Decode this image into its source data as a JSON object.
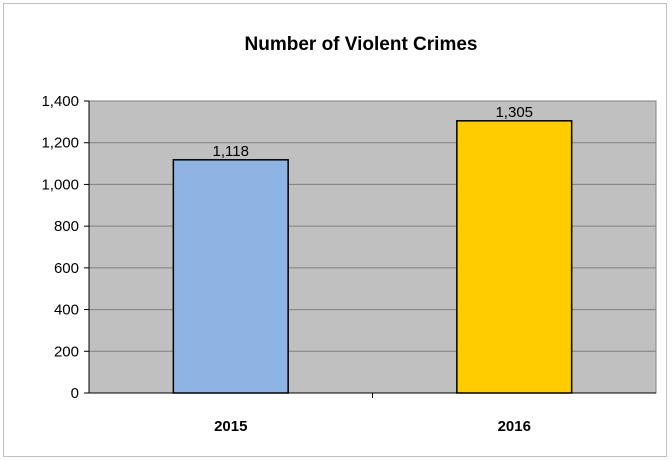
{
  "chart_data": {
    "type": "bar",
    "title": "Number of Violent Crimes",
    "categories": [
      "2015",
      "2016"
    ],
    "values": [
      1118,
      1305
    ],
    "data_labels": [
      "1,118",
      "1,305"
    ],
    "bar_colors": [
      "#8eb4e3",
      "#ffcc00"
    ],
    "plot_background": "#c0c0c0",
    "grid": true,
    "legend": "none",
    "ylim": [
      0,
      1400
    ],
    "yticks": [
      0,
      200,
      400,
      600,
      800,
      1000,
      1200,
      1400
    ],
    "ytick_labels": [
      "0",
      "200",
      "400",
      "600",
      "800",
      "1,000",
      "1,200",
      "1,400"
    ],
    "xlabel": "",
    "ylabel": ""
  }
}
